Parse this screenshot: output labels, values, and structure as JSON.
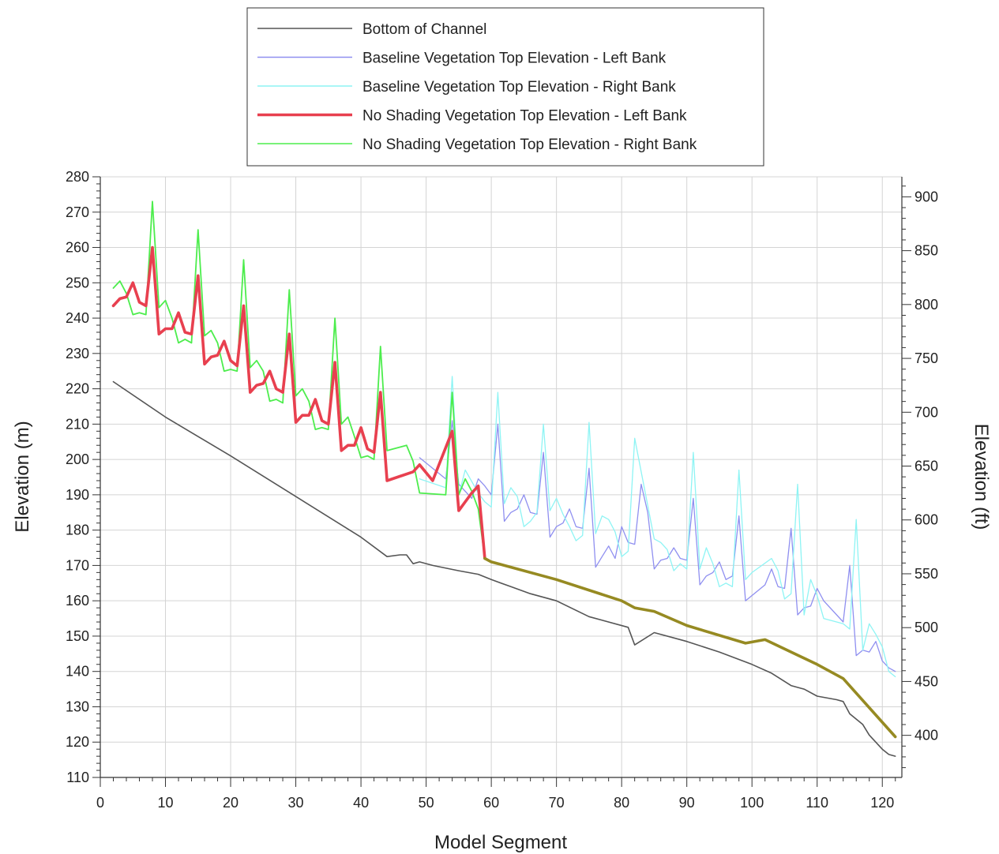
{
  "chart_data": {
    "type": "line",
    "xlabel": "Model Segment",
    "ylabel": "Elevation (m)",
    "y2label": "Elevation (ft)",
    "xlim": [
      0,
      123
    ],
    "ylim": [
      110,
      280
    ],
    "y2lim": [
      360.9,
      918.6
    ],
    "x_ticks": [
      0,
      10,
      20,
      30,
      40,
      50,
      60,
      70,
      80,
      90,
      100,
      110,
      120
    ],
    "y_ticks": [
      110,
      120,
      130,
      140,
      150,
      160,
      170,
      180,
      190,
      200,
      210,
      220,
      230,
      240,
      250,
      260,
      270,
      280
    ],
    "y2_ticks": [
      400,
      450,
      500,
      550,
      600,
      650,
      700,
      750,
      800,
      850,
      900
    ],
    "grid": true,
    "legend_position": "top-center",
    "series": [
      {
        "name": "Bottom of Channel",
        "color": "#555555",
        "width": 1.6,
        "x": [
          2,
          10,
          20,
          30,
          40,
          44,
          46,
          47,
          48,
          49,
          51,
          55,
          58,
          60,
          63,
          66,
          70,
          75,
          81,
          82,
          85,
          90,
          95,
          100,
          103,
          106,
          108,
          110,
          113,
          114,
          115,
          117,
          118,
          120,
          121,
          122
        ],
        "y": [
          222,
          212,
          201,
          189.5,
          178,
          172.5,
          173,
          173,
          170.5,
          171,
          170,
          168.5,
          167.5,
          166,
          164,
          162,
          160,
          155.5,
          152.5,
          147.5,
          151,
          148.5,
          145.5,
          142,
          139.5,
          136,
          135,
          133,
          132,
          131.5,
          128,
          125,
          122,
          118,
          116.5,
          116
        ]
      },
      {
        "name": "Baseline Vegetation Top Elevation - Left Bank",
        "color": "#8f8ff0",
        "width": 1.3,
        "x": [
          49,
          53,
          54,
          55,
          57,
          58,
          59,
          60,
          61,
          62,
          63,
          64,
          65,
          66,
          67,
          68,
          69,
          70,
          71,
          72,
          73,
          74,
          75,
          76,
          77,
          78,
          79,
          80,
          81,
          82,
          83,
          84,
          85,
          86,
          87,
          88,
          89,
          90,
          91,
          92,
          93,
          94,
          95,
          96,
          97,
          98,
          99,
          102,
          103,
          104,
          105,
          106,
          107,
          108,
          109,
          110,
          111,
          114,
          115,
          116,
          117,
          118,
          119,
          120,
          121,
          122
        ],
        "y": [
          200.5,
          194.5,
          211,
          193,
          189,
          194.5,
          192.5,
          190,
          210,
          182.5,
          185,
          186,
          190,
          185,
          184.5,
          202,
          178,
          181,
          182,
          186,
          181,
          180.5,
          197.5,
          169.5,
          172.5,
          175.5,
          172,
          181,
          176.5,
          176,
          193,
          185,
          169,
          171.5,
          172,
          175,
          172,
          171.5,
          189,
          164.5,
          167,
          168,
          171,
          166,
          167,
          184,
          160,
          164.5,
          169,
          164,
          163.5,
          180.5,
          156,
          158,
          158.5,
          163.5,
          160,
          154,
          170,
          144.5,
          146,
          145.5,
          148.5,
          143,
          141,
          140
        ]
      },
      {
        "name": "Baseline Vegetation Top Elevation - Right Bank",
        "color": "#8ef4f4",
        "width": 1.3,
        "x": [
          49,
          53,
          54,
          55,
          56,
          58,
          59,
          60,
          61,
          62,
          63,
          64,
          65,
          66,
          67,
          68,
          69,
          70,
          71,
          72,
          73,
          74,
          75,
          76,
          77,
          78,
          79,
          80,
          81,
          82,
          85,
          86,
          87,
          88,
          89,
          90,
          91,
          92,
          93,
          94,
          95,
          96,
          97,
          98,
          99,
          100,
          103,
          104,
          105,
          106,
          107,
          108,
          109,
          110,
          111,
          114,
          115,
          116,
          117,
          118,
          119,
          120,
          121,
          122
        ],
        "y": [
          194.5,
          192,
          223.5,
          190,
          197,
          190.5,
          188,
          186.5,
          219,
          187.5,
          192,
          189.5,
          181,
          182.5,
          185,
          210,
          185.5,
          189,
          184.5,
          181,
          177,
          178.5,
          210.5,
          179,
          184,
          183,
          179.5,
          172.5,
          174,
          206,
          177.5,
          176.5,
          174.5,
          168.5,
          170.5,
          169,
          202,
          169,
          175,
          170.5,
          164,
          165,
          164,
          197,
          166,
          168,
          172,
          168.5,
          160.5,
          162,
          193,
          156,
          166,
          161.5,
          155,
          153.5,
          152,
          183,
          146,
          153.5,
          150.5,
          147,
          140,
          138.5
        ]
      },
      {
        "name": "No Shading Vegetation Top Elevation - Right Bank",
        "color": "#4ded4d",
        "width": 1.8,
        "x": [
          2,
          3,
          4,
          5,
          6,
          7,
          8,
          9,
          10,
          11,
          12,
          13,
          14,
          15,
          16,
          17,
          18,
          19,
          20,
          21,
          22,
          23,
          24,
          25,
          26,
          27,
          28,
          29,
          30,
          31,
          32,
          33,
          34,
          35,
          36,
          37,
          38,
          39,
          40,
          41,
          42,
          43,
          44,
          47,
          48,
          49,
          53,
          54,
          55,
          56,
          57,
          58,
          59
        ],
        "y": [
          248.5,
          250.5,
          247,
          241,
          241.5,
          241,
          273,
          243,
          245,
          240,
          233,
          234,
          233,
          265,
          235,
          236.5,
          233,
          225,
          225.5,
          225,
          256.5,
          226,
          228,
          225,
          216.5,
          217,
          216,
          248,
          218,
          220,
          216.5,
          208.5,
          209,
          208.5,
          240,
          210,
          212,
          206.5,
          200.5,
          201,
          200,
          232,
          202.5,
          204,
          199.5,
          190.5,
          190,
          219,
          190,
          194.5,
          191,
          186,
          172
        ]
      },
      {
        "name": "No Shading Vegetation Top Elevation - Left Bank",
        "color": "#e8404f",
        "width": 3.6,
        "x": [
          2,
          3,
          4,
          5,
          6,
          7,
          8,
          9,
          10,
          11,
          12,
          13,
          14,
          15,
          16,
          17,
          18,
          19,
          20,
          21,
          22,
          23,
          24,
          25,
          26,
          27,
          28,
          29,
          30,
          31,
          32,
          33,
          34,
          35,
          36,
          37,
          38,
          39,
          40,
          41,
          42,
          43,
          44,
          48,
          49,
          51,
          54,
          55,
          56,
          57,
          58,
          59
        ],
        "y": [
          243.5,
          245.5,
          246,
          250,
          244.5,
          243.5,
          260,
          235.5,
          237,
          237,
          241.5,
          236,
          235.5,
          252,
          227,
          229,
          229.5,
          233.5,
          228,
          226.5,
          243.5,
          219,
          221,
          221.5,
          225,
          220,
          219,
          235.5,
          210.5,
          212.5,
          212.5,
          217,
          211,
          210,
          227.5,
          202.5,
          204,
          204,
          209,
          203,
          202,
          219,
          194,
          196.5,
          198.5,
          194,
          208,
          185.5,
          188,
          190.5,
          192.5,
          172
        ]
      },
      {
        "name": "",
        "color": "#968a22",
        "width": 3.6,
        "x": [
          59,
          60,
          70,
          80,
          82,
          85,
          90,
          99,
          102,
          110,
          114,
          122
        ],
        "y": [
          172,
          171,
          166,
          160,
          158,
          157,
          153,
          148,
          149,
          142,
          138,
          121.5
        ]
      }
    ]
  }
}
